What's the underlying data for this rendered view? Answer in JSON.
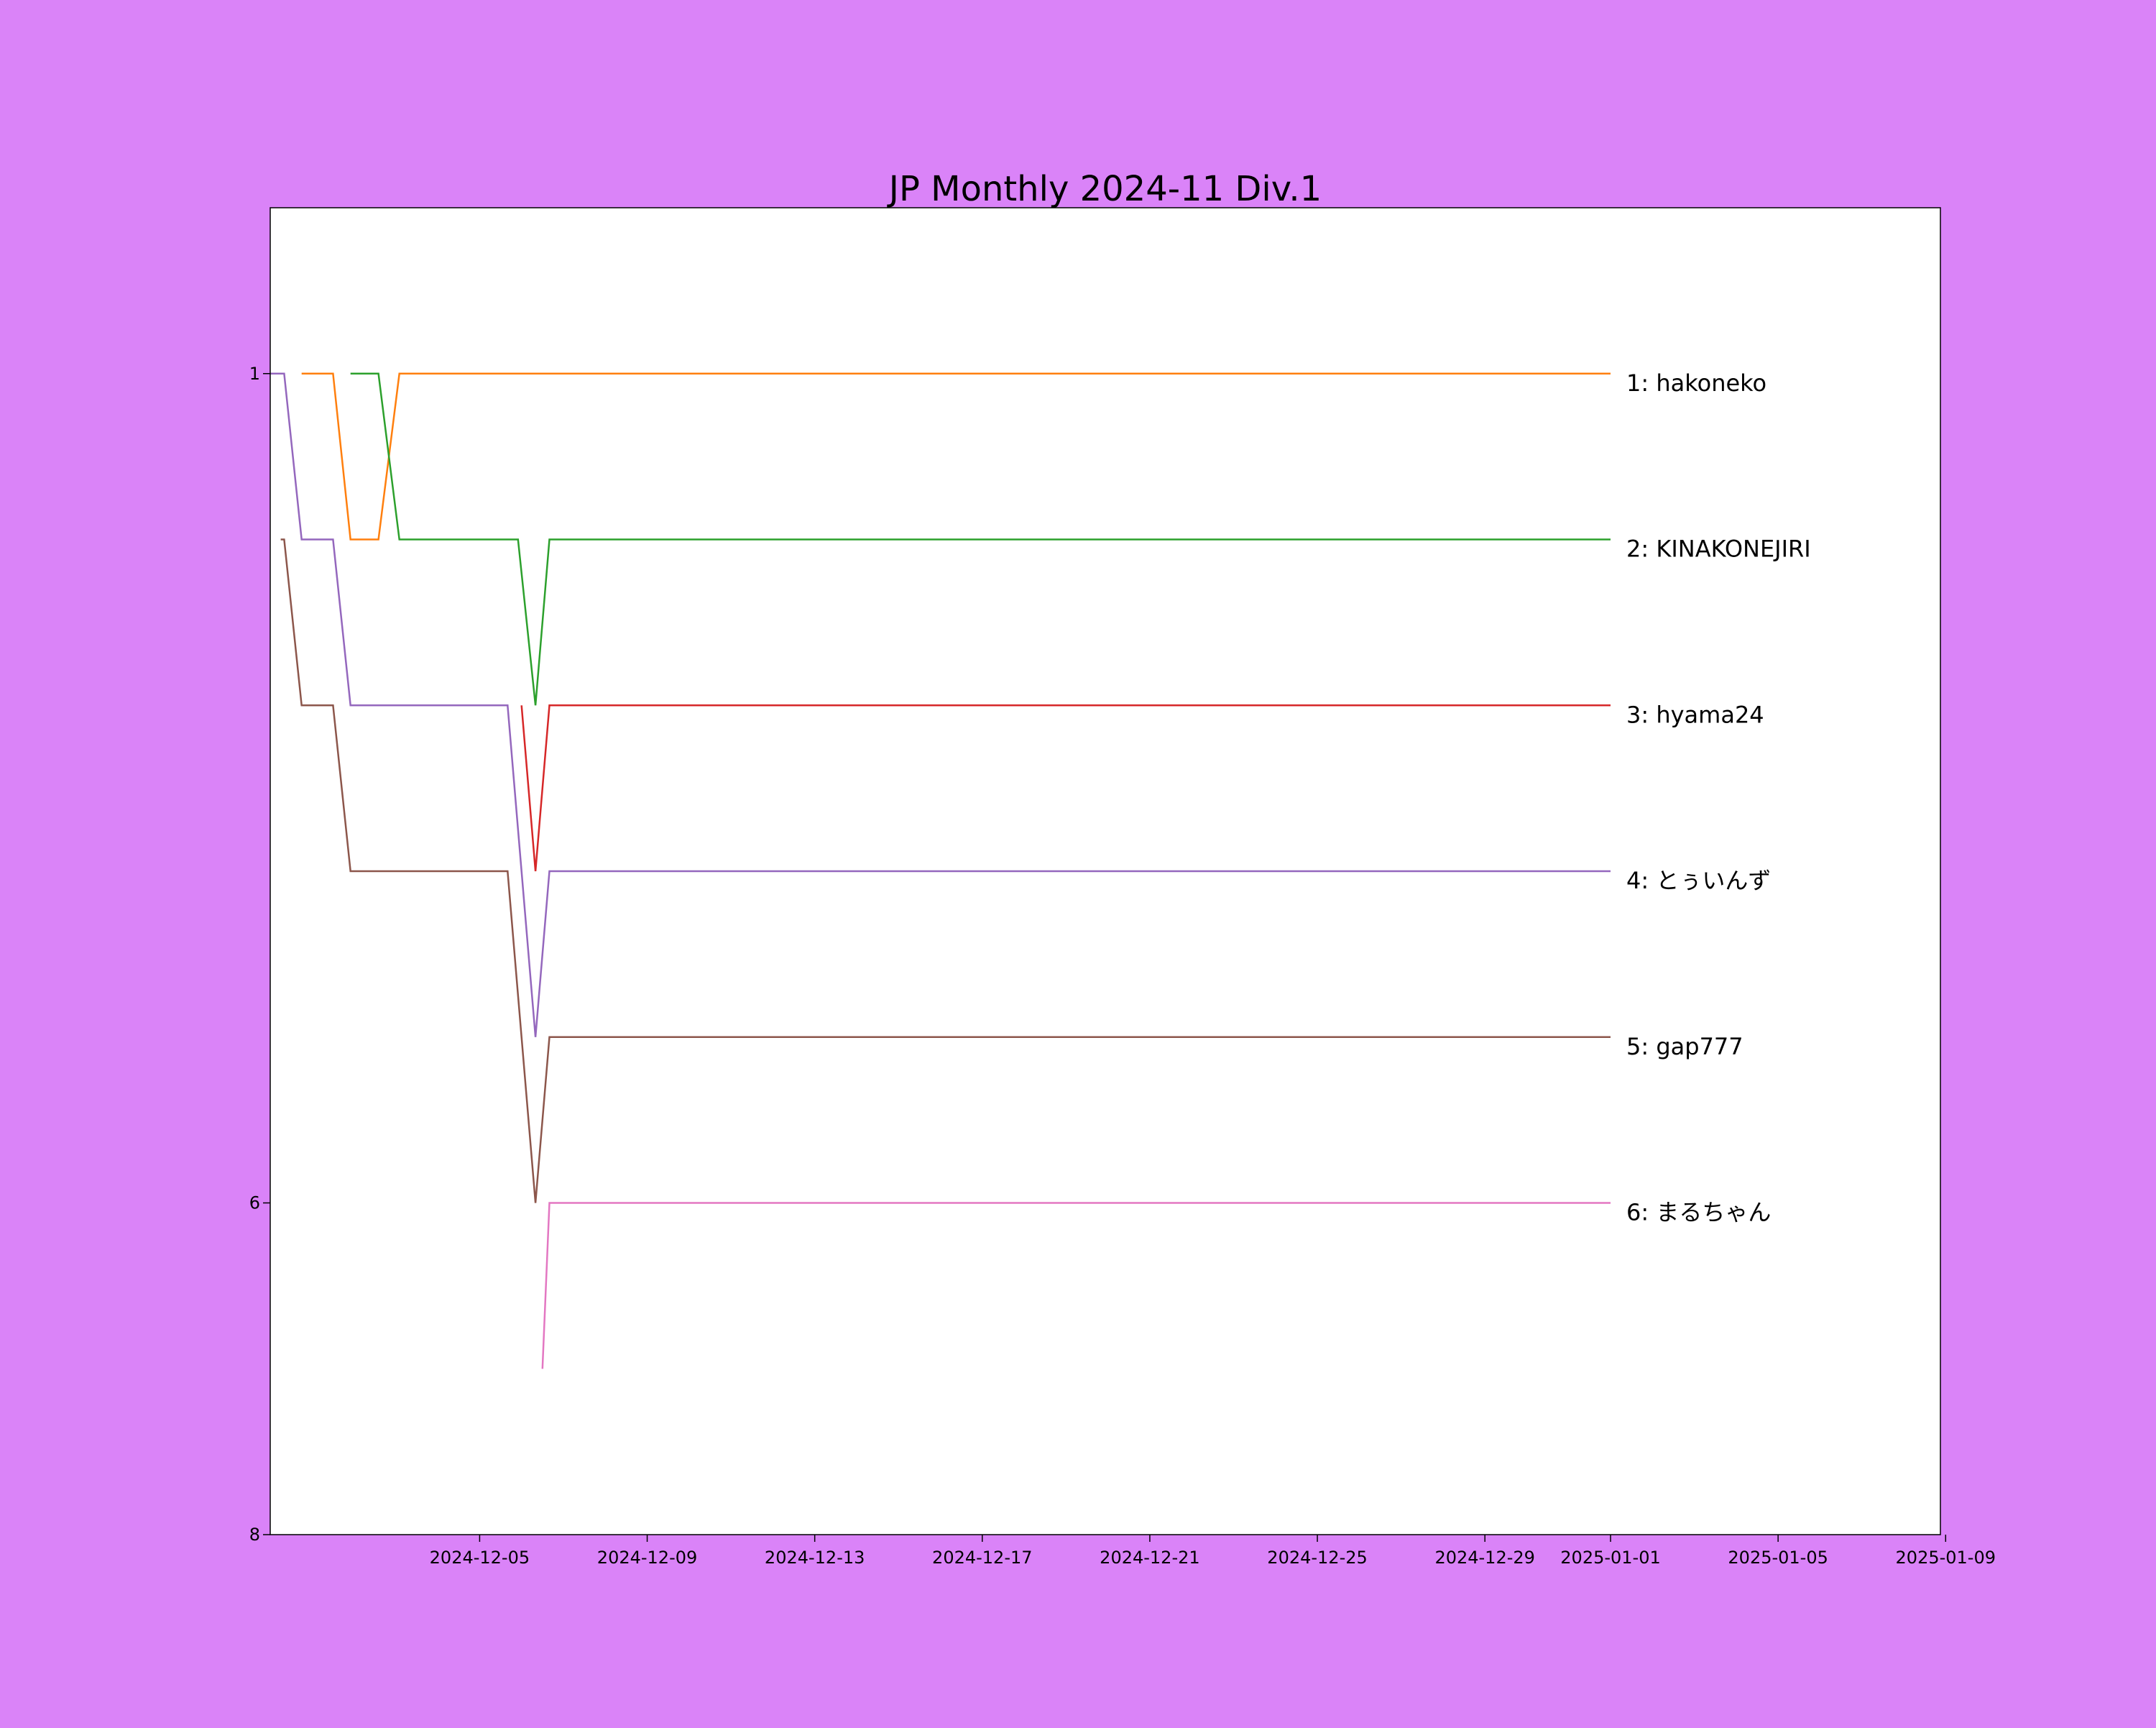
{
  "page": {
    "background": "#da83f8"
  },
  "chart_data": {
    "type": "line",
    "title": "JP Monthly 2024-11 Div.1",
    "xlabel": "",
    "ylabel": "",
    "x_type": "date",
    "xlim": [
      "2024-11-30T00:00",
      "2025-01-08T21:00"
    ],
    "ylim": [
      8,
      0
    ],
    "y_inverted": true,
    "grid": false,
    "legend": "none",
    "x_ticks": [
      "2024-12-05",
      "2024-12-09",
      "2024-12-13",
      "2024-12-17",
      "2024-12-21",
      "2024-12-25",
      "2024-12-29",
      "2025-01-01",
      "2025-01-05",
      "2025-01-09"
    ],
    "y_ticks": [
      1,
      6,
      8
    ],
    "series": [
      {
        "color": "#ff7f0e",
        "end_label": "1: hakoneko",
        "points": [
          [
            "2024-11-30T18:00",
            1
          ],
          [
            "2024-12-01T12:00",
            1
          ],
          [
            "2024-12-01T22:00",
            2
          ],
          [
            "2024-12-02T14:00",
            2
          ],
          [
            "2024-12-03T02:00",
            1
          ],
          [
            "2025-01-01T00:00",
            1
          ]
        ]
      },
      {
        "color": "#2ca02c",
        "end_label": "2: KINAKONEJIRI",
        "points": [
          [
            "2024-12-01T22:00",
            1
          ],
          [
            "2024-12-02T14:00",
            1
          ],
          [
            "2024-12-03T02:00",
            2
          ],
          [
            "2024-12-05T22:00",
            2
          ],
          [
            "2024-12-06T08:00",
            3
          ],
          [
            "2024-12-06T16:00",
            2
          ],
          [
            "2025-01-01T00:00",
            2
          ]
        ]
      },
      {
        "color": "#d62728",
        "end_label": "3: hyama24",
        "points": [
          [
            "2024-12-06T00:00",
            3
          ],
          [
            "2024-12-06T08:00",
            4
          ],
          [
            "2024-12-06T16:00",
            3
          ],
          [
            "2025-01-01T00:00",
            3
          ]
        ]
      },
      {
        "color": "#9467bd",
        "end_label": "4: とぅいんず",
        "points": [
          [
            "2024-11-30T00:00",
            1
          ],
          [
            "2024-11-30T08:00",
            1
          ],
          [
            "2024-11-30T18:00",
            2
          ],
          [
            "2024-12-01T12:00",
            2
          ],
          [
            "2024-12-01T22:00",
            3
          ],
          [
            "2024-12-05T16:00",
            3
          ],
          [
            "2024-12-06T00:00",
            4
          ],
          [
            "2024-12-06T08:00",
            5
          ],
          [
            "2024-12-06T16:00",
            4
          ],
          [
            "2025-01-01T00:00",
            4
          ]
        ]
      },
      {
        "color": "#8c564b",
        "end_label": "5: gap777",
        "points": [
          [
            "2024-11-30T06:00",
            2
          ],
          [
            "2024-11-30T08:00",
            2
          ],
          [
            "2024-11-30T18:00",
            3
          ],
          [
            "2024-12-01T12:00",
            3
          ],
          [
            "2024-12-01T22:00",
            4
          ],
          [
            "2024-12-05T16:00",
            4
          ],
          [
            "2024-12-06T00:00",
            5
          ],
          [
            "2024-12-06T08:00",
            6
          ],
          [
            "2024-12-06T16:00",
            5
          ],
          [
            "2025-01-01T00:00",
            5
          ]
        ]
      },
      {
        "color": "#e377c2",
        "end_label": "6: まるちゃん",
        "points": [
          [
            "2024-12-06T12:00",
            7
          ],
          [
            "2024-12-06T16:00",
            6
          ],
          [
            "2025-01-01T00:00",
            6
          ]
        ]
      }
    ]
  }
}
